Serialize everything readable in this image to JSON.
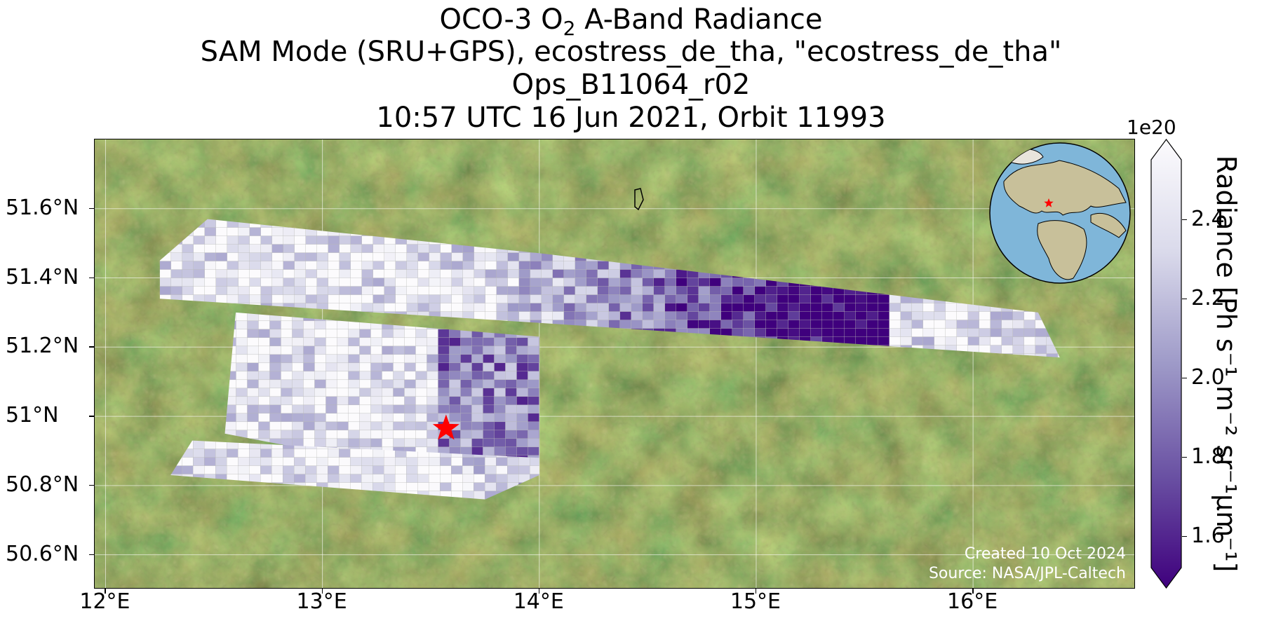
{
  "title": {
    "line1_prefix": "OCO-3 O",
    "line1_sub": "2",
    "line1_suffix": " A-Band Radiance",
    "line2": "SAM Mode (SRU+GPS), ecostress_de_tha, \"ecostress_de_tha\"",
    "line3": "Ops_B11064_r02",
    "line4": "10:57 UTC 16 Jun 2021, Orbit 11993"
  },
  "map": {
    "extent": {
      "lon_min": 11.95,
      "lon_max": 16.75,
      "lat_min": 50.5,
      "lat_max": 51.8
    },
    "lat_labels": [
      {
        "value": 51.6,
        "text": "51.6°N"
      },
      {
        "value": 51.4,
        "text": "51.4°N"
      },
      {
        "value": 51.2,
        "text": "51.2°N"
      },
      {
        "value": 51.0,
        "text": "51°N"
      },
      {
        "value": 50.8,
        "text": "50.8°N"
      },
      {
        "value": 50.6,
        "text": "50.6°N"
      }
    ],
    "lon_labels": [
      {
        "value": 12,
        "text": "12°E"
      },
      {
        "value": 13,
        "text": "13°E"
      },
      {
        "value": 14,
        "text": "14°E"
      },
      {
        "value": 15,
        "text": "15°E"
      },
      {
        "value": 16,
        "text": "16°E"
      }
    ],
    "target": {
      "lon": 13.57,
      "lat": 50.965,
      "marker": "red-star"
    },
    "background": "satellite imagery",
    "swaths": [
      {
        "name": "northern swath",
        "corners": [
          [
            12.25,
            51.45
          ],
          [
            12.47,
            51.57
          ],
          [
            14.02,
            51.47
          ],
          [
            16.3,
            51.3
          ],
          [
            16.4,
            51.17
          ],
          [
            14.0,
            51.27
          ],
          [
            12.25,
            51.34
          ]
        ]
      },
      {
        "name": "middle swath",
        "corners": [
          [
            12.6,
            51.3
          ],
          [
            14.0,
            51.23
          ],
          [
            14.0,
            50.88
          ],
          [
            13.3,
            50.86
          ],
          [
            12.55,
            50.95
          ]
        ]
      },
      {
        "name": "southern swath",
        "corners": [
          [
            12.4,
            50.93
          ],
          [
            14.0,
            50.88
          ],
          [
            14.0,
            50.83
          ],
          [
            13.75,
            50.76
          ],
          [
            12.3,
            50.83
          ]
        ]
      }
    ]
  },
  "globe_inset": {
    "marker_lon": 13.57,
    "marker_lat": 50.965
  },
  "credit": {
    "created": "Created 10 Oct 2024",
    "source": "Source: NASA/JPL-Caltech"
  },
  "colorbar": {
    "exponent": "1e20",
    "min": 1.52,
    "max": 2.55,
    "ticks": [
      {
        "value": 2.4,
        "text": "2.4"
      },
      {
        "value": 2.2,
        "text": "2.2"
      },
      {
        "value": 2.0,
        "text": "2.0"
      },
      {
        "value": 1.8,
        "text": "1.8"
      },
      {
        "value": 1.6,
        "text": "1.6"
      }
    ],
    "label": "Radiance [Ph s⁻¹ m⁻² sr⁻¹µm⁻¹]",
    "colormap": "Purples_r",
    "color_low": "#3f007d",
    "color_mid": "#807dba",
    "color_high": "#fcfbfd"
  },
  "colors": {
    "target_star": "#ff0000",
    "grid": "#ffffff",
    "ocean": "#7fb6d9",
    "land": "#c8c09a"
  }
}
